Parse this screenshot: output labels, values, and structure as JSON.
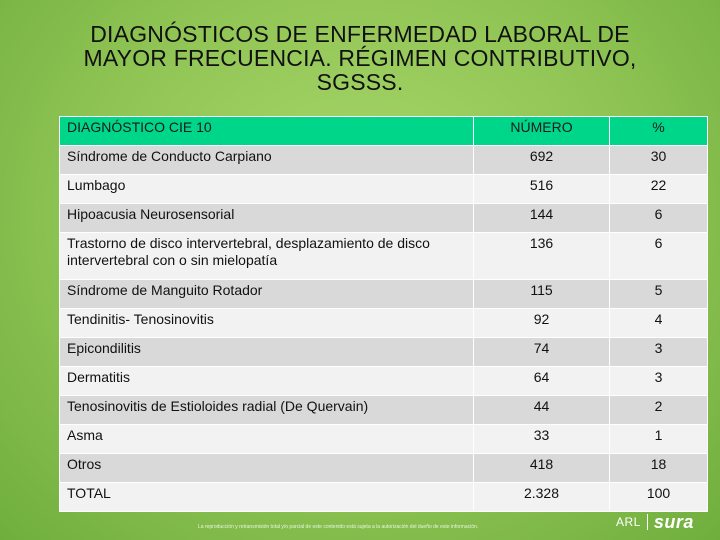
{
  "title": {
    "line1": "DIAGNÓSTICOS DE ENFERMEDAD LABORAL DE",
    "line2": "MAYOR FRECUENCIA. RÉGIMEN CONTRIBUTIVO,",
    "line3": "SGSSS."
  },
  "table": {
    "headers": [
      "DIAGNÓSTICO CIE 10",
      "NÚMERO",
      "%"
    ],
    "rows": [
      {
        "diagnostico": "Síndrome de Conducto Carpiano",
        "numero": "692",
        "pct": "30"
      },
      {
        "diagnostico": "Lumbago",
        "numero": "516",
        "pct": "22"
      },
      {
        "diagnostico": "Hipoacusia Neurosensorial",
        "numero": "144",
        "pct": "6"
      },
      {
        "diagnostico": "Trastorno de disco intervertebral, desplazamiento de disco intervertebral con o sin mielopatía",
        "numero": "136",
        "pct": "6"
      },
      {
        "diagnostico": "Síndrome de Manguito Rotador",
        "numero": "115",
        "pct": "5"
      },
      {
        "diagnostico": "Tendinitis- Tenosinovitis",
        "numero": "92",
        "pct": "4"
      },
      {
        "diagnostico": "Epicondilitis",
        "numero": "74",
        "pct": "3"
      },
      {
        "diagnostico": "Dermatitis",
        "numero": "64",
        "pct": "3"
      },
      {
        "diagnostico": "Tenosinovitis de Estioloides radial  (De Quervain)",
        "numero": "44",
        "pct": "2"
      },
      {
        "diagnostico": "Asma",
        "numero": "33",
        "pct": "1"
      },
      {
        "diagnostico": "Otros",
        "numero": "418",
        "pct": "18"
      },
      {
        "diagnostico": "TOTAL",
        "numero": "2.328",
        "pct": "100"
      }
    ]
  },
  "footer": {
    "note": "La reproducción y retransmisión total y/o parcial de este contenido está sujeta a la autorización del dueño de este información.",
    "logo_arl": "ARL",
    "logo_sura": "sura"
  },
  "colors": {
    "header_bg": "#00d68a",
    "row_odd": "#d9d9d9",
    "row_even": "#f2f2f2",
    "background": "#8fc454"
  }
}
